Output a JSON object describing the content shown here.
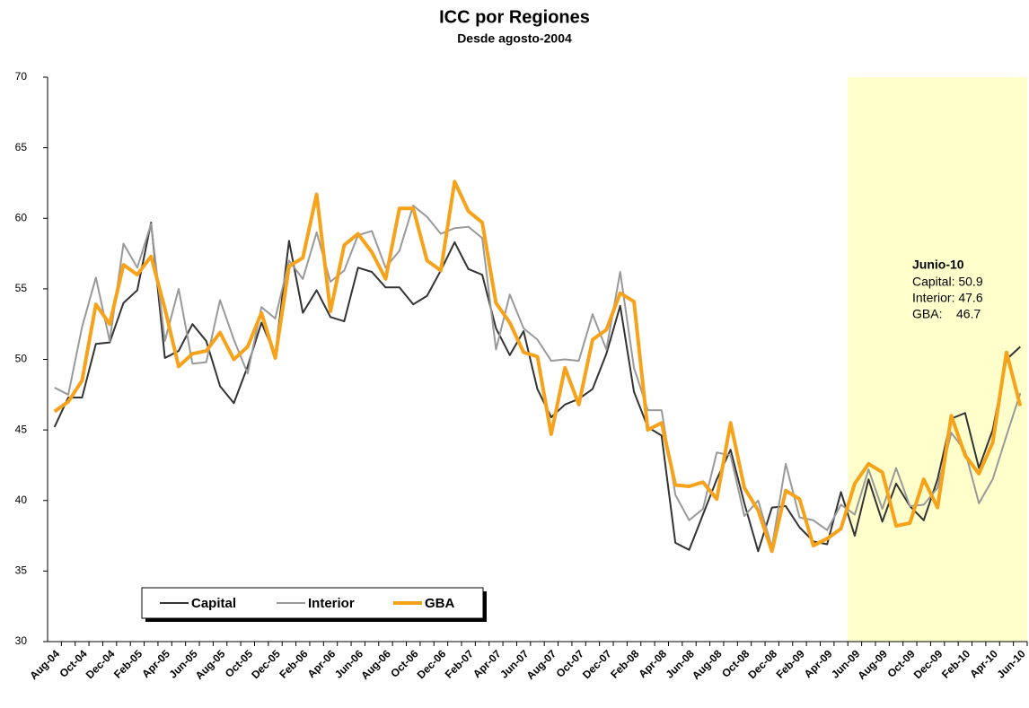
{
  "chart_data": {
    "type": "line",
    "title": "ICC por Regiones",
    "subtitle": "Desde agosto-2004",
    "categories": [
      "Aug-04",
      null,
      "Oct-04",
      null,
      "Dec-04",
      null,
      "Feb-05",
      null,
      "Apr-05",
      null,
      "Jun-05",
      null,
      "Aug-05",
      null,
      "Oct-05",
      null,
      "Dec-05",
      null,
      "Feb-06",
      null,
      "Apr-06",
      null,
      "Jun-06",
      null,
      "Aug-06",
      null,
      "Oct-06",
      null,
      "Dec-06",
      null,
      "Feb-07",
      null,
      "Apr-07",
      null,
      "Jun-07",
      null,
      "Aug-07",
      null,
      "Oct-07",
      null,
      "Dec-07",
      null,
      "Feb-08",
      null,
      "Apr-08",
      null,
      "Jun-08",
      null,
      "Aug-08",
      null,
      "Oct-08",
      null,
      "Dec-08",
      null,
      "Feb-09",
      null,
      "Apr-09",
      null,
      "Jun-09",
      null,
      "Aug-09",
      null,
      "Oct-09",
      null,
      "Dec-09",
      null,
      "Feb-10",
      null,
      "Apr-10",
      null,
      "Jun-10"
    ],
    "series": [
      {
        "name": "Capital",
        "color": "#333333",
        "width": 2,
        "values": [
          45.2,
          47.3,
          47.3,
          51.1,
          51.2,
          54.0,
          54.9,
          59.7,
          50.1,
          50.6,
          52.5,
          51.3,
          48.1,
          46.9,
          49.5,
          52.6,
          50.3,
          58.4,
          53.3,
          54.9,
          53.0,
          52.7,
          56.5,
          56.2,
          55.1,
          55.1,
          53.9,
          54.5,
          56.3,
          58.3,
          56.4,
          56.0,
          52.2,
          50.3,
          52.0,
          47.9,
          45.9,
          46.8,
          47.2,
          47.9,
          50.4,
          53.8,
          47.7,
          45.2,
          44.6,
          37.0,
          36.5,
          39.0,
          41.5,
          43.6,
          39.8,
          36.4,
          39.5,
          39.6,
          38.1,
          37.1,
          36.9,
          40.6,
          37.5,
          41.5,
          38.5,
          41.2,
          39.6,
          38.6,
          41.5,
          45.8,
          46.2,
          42.3,
          45.0,
          50.0,
          50.9
        ]
      },
      {
        "name": "Interior",
        "color": "#999999",
        "width": 2,
        "values": [
          48.0,
          47.5,
          52.3,
          55.8,
          51.3,
          58.2,
          56.5,
          59.6,
          51.3,
          55.0,
          49.7,
          49.8,
          54.2,
          51.4,
          49.0,
          53.7,
          52.9,
          57.0,
          55.7,
          59.0,
          55.5,
          56.3,
          58.8,
          59.1,
          56.5,
          57.7,
          60.9,
          60.1,
          58.9,
          59.3,
          59.4,
          58.6,
          50.7,
          54.6,
          52.2,
          51.4,
          49.9,
          50.0,
          49.9,
          53.2,
          50.7,
          56.2,
          49.4,
          46.4,
          46.4,
          40.4,
          38.6,
          39.4,
          43.4,
          43.2,
          38.9,
          40.0,
          36.7,
          42.6,
          38.8,
          38.6,
          37.9,
          39.7,
          39.0,
          42.2,
          39.4,
          42.3,
          39.6,
          39.7,
          40.9,
          44.8,
          43.5,
          39.8,
          41.5,
          44.6,
          47.6
        ]
      },
      {
        "name": "GBA",
        "color": "#f7a21b",
        "width": 4,
        "values": [
          46.3,
          47.0,
          48.5,
          53.9,
          52.5,
          56.7,
          56.0,
          57.3,
          53.6,
          49.5,
          50.4,
          50.6,
          51.9,
          50.0,
          50.9,
          53.3,
          50.1,
          56.6,
          57.2,
          61.7,
          53.4,
          58.1,
          58.9,
          57.6,
          55.7,
          60.7,
          60.7,
          57.0,
          56.3,
          62.6,
          60.5,
          59.7,
          54.0,
          52.6,
          50.5,
          50.2,
          44.7,
          49.4,
          46.8,
          51.4,
          52.1,
          54.7,
          54.1,
          45.0,
          45.5,
          41.1,
          41.0,
          41.3,
          40.1,
          45.5,
          40.9,
          39.3,
          36.4,
          40.7,
          40.1,
          36.8,
          37.3,
          38.0,
          41.2,
          42.6,
          42.0,
          38.2,
          38.4,
          41.5,
          39.5,
          46.0,
          43.2,
          41.9,
          44.1,
          50.5,
          46.7
        ]
      }
    ],
    "ylim": [
      30,
      70
    ],
    "yticks": [
      30,
      35,
      40,
      45,
      50,
      55,
      60,
      65,
      70
    ],
    "shaded_from": "Jun-09",
    "shade_color": "#ffffcc",
    "annotation": {
      "title": "Junio-10",
      "lines": [
        "Capital: 50.9",
        "Interior: 47.6",
        "GBA:    46.7"
      ]
    },
    "legend": "bottom-left"
  }
}
